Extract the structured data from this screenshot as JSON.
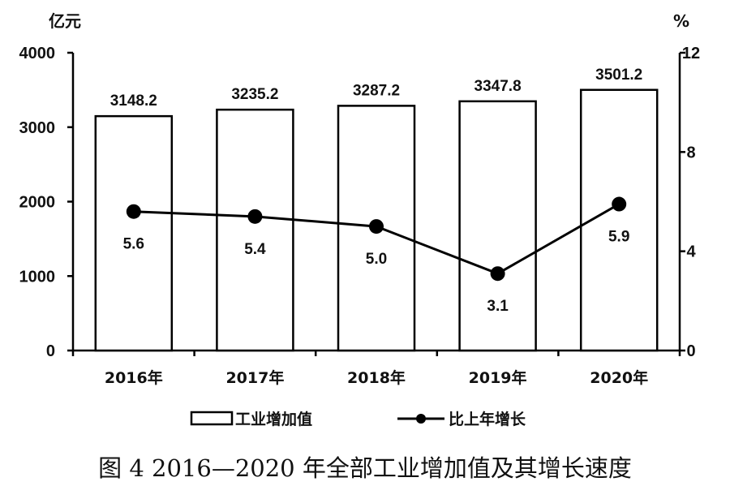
{
  "chart_data": {
    "type": "bar",
    "caption": "图 4 2016—2020 年全部工业增加值及其增长速度",
    "categories": [
      "2016年",
      "2017年",
      "2018年",
      "2019年",
      "2020年"
    ],
    "y_left": {
      "unit": "亿元",
      "ylim": [
        0,
        4000
      ],
      "ticks": [
        "0",
        "1000",
        "2000",
        "3000",
        "4000"
      ]
    },
    "y_right": {
      "unit": "%",
      "ylim": [
        0,
        12
      ],
      "ticks": [
        "0",
        "4",
        "8",
        "12"
      ]
    },
    "series": [
      {
        "name": "工业增加值",
        "type": "bar",
        "axis": "left",
        "values": [
          3148.2,
          3235.2,
          3287.2,
          3347.8,
          3501.2
        ],
        "labels": [
          "3148.2",
          "3235.2",
          "3287.2",
          "3347.8",
          "3501.2"
        ]
      },
      {
        "name": "比上年增长",
        "type": "line",
        "axis": "right",
        "values": [
          5.6,
          5.4,
          5.0,
          3.1,
          5.9
        ],
        "labels": [
          "5.6",
          "5.4",
          "5.0",
          "3.1",
          "5.9"
        ]
      }
    ],
    "grid": false,
    "legend_position": "bottom"
  }
}
